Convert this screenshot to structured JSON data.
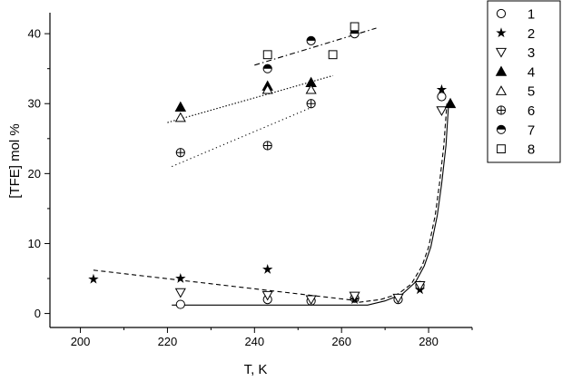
{
  "chart_data": {
    "type": "scatter",
    "xlabel": "T, K",
    "ylabel": "[TFE] mol %",
    "xlim": [
      193,
      290
    ],
    "ylim": [
      -2,
      43
    ],
    "xticks": [
      200,
      220,
      240,
      260,
      280
    ],
    "yticks": [
      0,
      10,
      20,
      30,
      40
    ],
    "grid": false,
    "legend_position": "outside-right-top",
    "series": [
      {
        "name": "1",
        "marker": "circle-open",
        "points": [
          [
            223,
            1.3
          ],
          [
            243,
            2.0
          ],
          [
            253,
            1.8
          ],
          [
            263,
            2.2
          ],
          [
            273,
            2.0
          ],
          [
            278,
            4.0
          ],
          [
            283,
            31
          ]
        ]
      },
      {
        "name": "2",
        "marker": "star",
        "points": [
          [
            203,
            4.9
          ],
          [
            223,
            5.0
          ],
          [
            243,
            6.3
          ],
          [
            263,
            2.0
          ],
          [
            278,
            3.4
          ],
          [
            283,
            32
          ]
        ]
      },
      {
        "name": "3",
        "marker": "triangle-down-open",
        "points": [
          [
            223,
            3.0
          ],
          [
            243,
            2.6
          ],
          [
            253,
            2.0
          ],
          [
            263,
            2.5
          ],
          [
            273,
            2.2
          ],
          [
            278,
            4.0
          ],
          [
            283,
            29
          ]
        ]
      },
      {
        "name": "4",
        "marker": "triangle-up-filled",
        "points": [
          [
            223,
            29.5
          ],
          [
            243,
            32.5
          ],
          [
            253,
            33.0
          ],
          [
            285,
            30
          ]
        ]
      },
      {
        "name": "5",
        "marker": "triangle-up-open",
        "points": [
          [
            223,
            28
          ],
          [
            243,
            32
          ],
          [
            253,
            32
          ]
        ]
      },
      {
        "name": "6",
        "marker": "circle-plus",
        "points": [
          [
            223,
            23
          ],
          [
            243,
            24
          ],
          [
            253,
            30
          ]
        ]
      },
      {
        "name": "7",
        "marker": "circle-half",
        "points": [
          [
            243,
            35
          ],
          [
            253,
            39
          ],
          [
            263,
            40
          ]
        ]
      },
      {
        "name": "8",
        "marker": "square-open",
        "points": [
          [
            243,
            37
          ],
          [
            258,
            37
          ],
          [
            263,
            41
          ]
        ]
      }
    ],
    "fit_lines": [
      {
        "style": "dash-dot",
        "points": [
          [
            240,
            35.5
          ],
          [
            268,
            40.8
          ]
        ]
      },
      {
        "style": "dotted",
        "points": [
          [
            220,
            27.3
          ],
          [
            258,
            34.0
          ]
        ]
      },
      {
        "style": "sparse-dotted",
        "points": [
          [
            221,
            21.0
          ],
          [
            254,
            29.7
          ]
        ]
      },
      {
        "style": "dashed",
        "points": [
          [
            203,
            6.2
          ],
          [
            264,
            1.8
          ]
        ]
      },
      {
        "style": "solid-curve",
        "points": [
          [
            221,
            1.2
          ],
          [
            266,
            1.2
          ],
          [
            270,
            1.8
          ],
          [
            274,
            2.8
          ],
          [
            277,
            4.5
          ],
          [
            279,
            6.8
          ],
          [
            280.5,
            9.5
          ],
          [
            282,
            14
          ],
          [
            283,
            18.5
          ],
          [
            284,
            24
          ],
          [
            284.6,
            30
          ]
        ]
      },
      {
        "style": "dashed-curve",
        "points": [
          [
            264,
            1.6
          ],
          [
            269,
            2.0
          ],
          [
            273,
            2.8
          ],
          [
            276,
            4.2
          ],
          [
            278.5,
            6.8
          ],
          [
            280,
            9.5
          ],
          [
            281.5,
            14
          ],
          [
            282.5,
            18.5
          ],
          [
            283.5,
            24
          ],
          [
            284.2,
            30
          ]
        ]
      }
    ]
  }
}
